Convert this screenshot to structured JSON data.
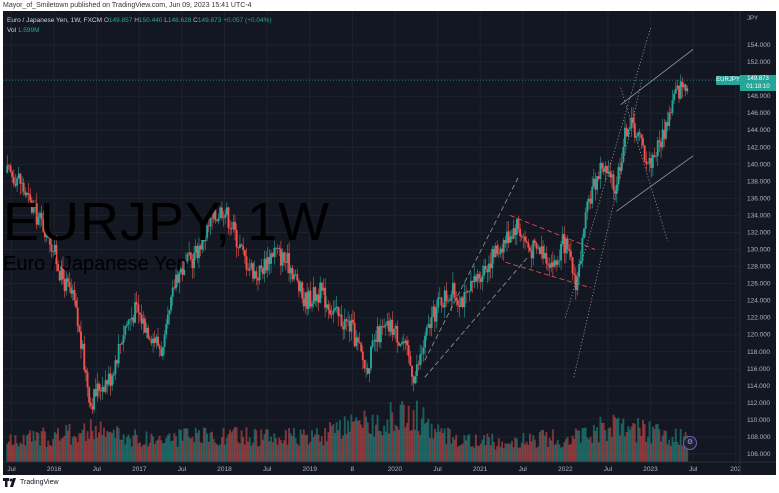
{
  "header": {
    "published": "Mayor_of_Smiletown published on TradingView.com, Jun 09, 2023 15:41 UTC-4"
  },
  "legend": {
    "symbol": "Euro / Japanese Yen, 1W, FXCM",
    "open_label": "O",
    "open": "149.857",
    "high_label": "H",
    "high": "150.440",
    "low_label": "L",
    "low": "148.628",
    "close_label": "C",
    "close": "149.873",
    "change": "+0.057 (+0.04%)",
    "vol_label": "Vol",
    "vol": "1.599M"
  },
  "watermark": {
    "ticker": "EURJPY, 1W",
    "name": "Euro / Japanese Yen"
  },
  "price_axis": {
    "currency": "JPY"
  },
  "price_tag": {
    "symbol": "EURJPY",
    "price": "149.873",
    "countdown": "01:18:10"
  },
  "footer": {
    "brand": "TradingView"
  },
  "colors": {
    "background": "#131722",
    "up": "#26a69a",
    "down": "#ef5350",
    "text": "#b2b5be",
    "grid": "#1e222d"
  },
  "chart_data": {
    "type": "candlestick",
    "timeframe": "1W",
    "y_ticks": [
      106,
      108,
      110,
      112,
      114,
      116,
      118,
      120,
      122,
      124,
      126,
      128,
      130,
      132,
      134,
      136,
      138,
      140,
      142,
      144,
      146,
      148,
      150,
      152,
      154
    ],
    "ylim": [
      105.2,
      156.5
    ],
    "x_ticks": [
      "Jul",
      "2016",
      "Jul",
      "2017",
      "Jul",
      "2018",
      "Jul",
      "2019",
      "8",
      "2020",
      "Jul",
      "2021",
      "Jul",
      "2022",
      "Jul",
      "2023",
      "Jul",
      "202"
    ],
    "x_tick_time": [
      2015.5,
      2016.0,
      2016.5,
      2017.0,
      2017.5,
      2018.0,
      2018.5,
      2019.0,
      2019.5,
      2020.0,
      2020.5,
      2021.0,
      2021.5,
      2022.0,
      2022.5,
      2023.0,
      2023.5,
      2024.0
    ],
    "xlim": [
      2015.4,
      2024.05
    ],
    "last_time": 2023.44,
    "price_path": [
      [
        2015.45,
        139
      ],
      [
        2015.6,
        138.5
      ],
      [
        2015.75,
        135
      ],
      [
        2015.95,
        132
      ],
      [
        2016.1,
        127
      ],
      [
        2016.25,
        124
      ],
      [
        2016.45,
        112
      ],
      [
        2016.55,
        114
      ],
      [
        2016.68,
        115
      ],
      [
        2016.85,
        121
      ],
      [
        2016.98,
        123
      ],
      [
        2017.1,
        121
      ],
      [
        2017.3,
        118
      ],
      [
        2017.45,
        127
      ],
      [
        2017.65,
        129
      ],
      [
        2017.85,
        133
      ],
      [
        2018.0,
        135
      ],
      [
        2018.1,
        133
      ],
      [
        2018.25,
        129
      ],
      [
        2018.4,
        127
      ],
      [
        2018.6,
        130
      ],
      [
        2018.8,
        128
      ],
      [
        2018.95,
        124
      ],
      [
        2019.15,
        125
      ],
      [
        2019.35,
        122
      ],
      [
        2019.5,
        121
      ],
      [
        2019.68,
        116
      ],
      [
        2019.82,
        120
      ],
      [
        2019.98,
        121
      ],
      [
        2020.12,
        119
      ],
      [
        2020.25,
        115
      ],
      [
        2020.42,
        121
      ],
      [
        2020.55,
        124
      ],
      [
        2020.68,
        125
      ],
      [
        2020.85,
        124
      ],
      [
        2021.0,
        127
      ],
      [
        2021.15,
        129
      ],
      [
        2021.3,
        131
      ],
      [
        2021.45,
        133
      ],
      [
        2021.6,
        130
      ],
      [
        2021.75,
        130
      ],
      [
        2021.9,
        128
      ],
      [
        2022.0,
        131
      ],
      [
        2022.15,
        126
      ],
      [
        2022.3,
        136
      ],
      [
        2022.45,
        140
      ],
      [
        2022.6,
        137
      ],
      [
        2022.75,
        145
      ],
      [
        2022.85,
        144
      ],
      [
        2023.0,
        140
      ],
      [
        2023.15,
        143
      ],
      [
        2023.3,
        148
      ],
      [
        2023.44,
        149.873
      ]
    ],
    "volume_ylim": [
      0,
      1
    ],
    "volume_profile": [
      [
        2015.45,
        0.35
      ],
      [
        2016.5,
        0.55
      ],
      [
        2017.0,
        0.4
      ],
      [
        2018.0,
        0.45
      ],
      [
        2019.0,
        0.42
      ],
      [
        2020.2,
        0.85
      ],
      [
        2020.5,
        0.5
      ],
      [
        2021.0,
        0.35
      ],
      [
        2022.0,
        0.42
      ],
      [
        2022.5,
        0.6
      ],
      [
        2023.0,
        0.55
      ],
      [
        2023.44,
        0.38
      ]
    ],
    "trendlines": [
      {
        "style": "dashed",
        "color": "#9598a1",
        "points": [
          [
            2020.35,
            117
          ],
          [
            2021.45,
            138.5
          ]
        ]
      },
      {
        "style": "dashed",
        "color": "#9598a1",
        "points": [
          [
            2020.35,
            115
          ],
          [
            2021.55,
            129
          ]
        ]
      },
      {
        "style": "dashed",
        "color": "#ef5350",
        "points": [
          [
            2021.35,
            134
          ],
          [
            2022.35,
            130
          ]
        ]
      },
      {
        "style": "dashed",
        "color": "#ef5350",
        "points": [
          [
            2021.3,
            128.5
          ],
          [
            2022.3,
            125.5
          ]
        ]
      },
      {
        "style": "dotted",
        "color": "#9598a1",
        "points": [
          [
            2022.0,
            122
          ],
          [
            2023.0,
            156
          ]
        ]
      },
      {
        "style": "dotted",
        "color": "#9598a1",
        "points": [
          [
            2022.1,
            115
          ],
          [
            2022.9,
            150
          ]
        ]
      },
      {
        "style": "solid",
        "color": "#9598a1",
        "points": [
          [
            2022.65,
            147
          ],
          [
            2023.5,
            153.5
          ]
        ]
      },
      {
        "style": "solid",
        "color": "#9598a1",
        "points": [
          [
            2022.6,
            134.5
          ],
          [
            2023.5,
            141
          ]
        ]
      },
      {
        "style": "dotted",
        "color": "#9598a1",
        "points": [
          [
            2022.65,
            149
          ],
          [
            2023.2,
            131
          ]
        ]
      }
    ]
  }
}
